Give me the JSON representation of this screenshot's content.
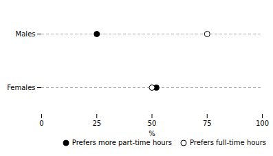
{
  "chart_data": {
    "type": "dot",
    "xlabel": "%",
    "categories": [
      "Males",
      "Females"
    ],
    "series": [
      {
        "name": "Prefers more part-time hours",
        "color": "#000000",
        "values": [
          25,
          52
        ]
      },
      {
        "name": "Prefers full-time hours",
        "color": "#ffffff",
        "values": [
          75,
          50
        ]
      }
    ],
    "xlim": [
      0,
      100
    ],
    "xticks": [
      0,
      25,
      50,
      75,
      100
    ],
    "grid": true,
    "legend": "lower right"
  }
}
